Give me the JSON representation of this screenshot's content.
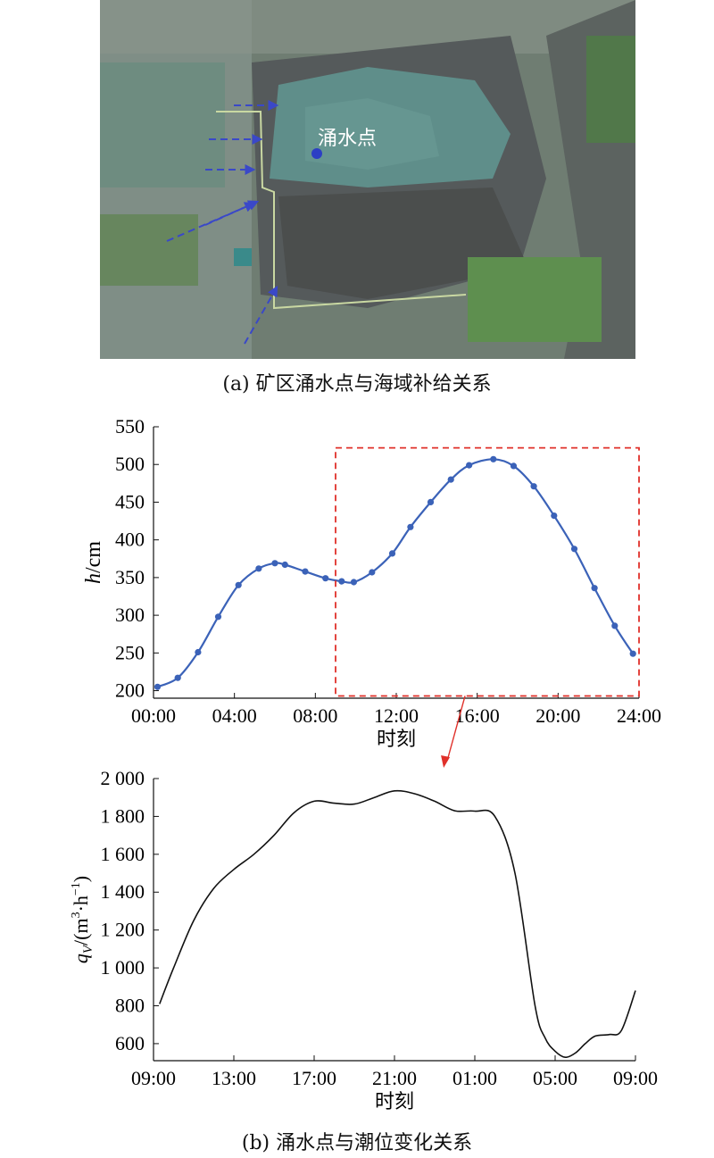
{
  "photo": {
    "label": "涌水点",
    "colors": {
      "arrow": "#3a48c8",
      "point": "#2c3fc4"
    }
  },
  "caption_a": "(a) 矿区涌水点与海域补给关系",
  "caption_b": "(b) 涌水点与潮位变化关系",
  "chart_data": [
    {
      "type": "line",
      "xlabel": "时刻",
      "ylabel_italic": "h",
      "ylabel_rest": "/cm",
      "xticks": [
        "00:00",
        "04:00",
        "08:00",
        "12:00",
        "16:00",
        "20:00",
        "24:00"
      ],
      "xlim": [
        0,
        24
      ],
      "ylim": [
        190,
        550
      ],
      "yticks": [
        200,
        250,
        300,
        350,
        400,
        450,
        500,
        550
      ],
      "color": "#3b62b8",
      "points": [
        [
          0.2,
          205
        ],
        [
          1.2,
          217
        ],
        [
          2.2,
          251
        ],
        [
          3.2,
          298
        ],
        [
          4.2,
          340
        ],
        [
          5.2,
          362
        ],
        [
          6.0,
          369
        ],
        [
          6.5,
          367
        ],
        [
          7.5,
          358
        ],
        [
          8.5,
          349
        ],
        [
          9.3,
          345
        ],
        [
          9.9,
          344
        ],
        [
          10.8,
          357
        ],
        [
          11.8,
          382
        ],
        [
          12.7,
          417
        ],
        [
          13.7,
          450
        ],
        [
          14.7,
          480
        ],
        [
          15.6,
          499
        ],
        [
          16.8,
          507
        ],
        [
          17.8,
          498
        ],
        [
          18.8,
          471
        ],
        [
          19.8,
          432
        ],
        [
          20.8,
          388
        ],
        [
          21.8,
          336
        ],
        [
          22.8,
          286
        ],
        [
          23.7,
          249
        ]
      ],
      "highlight": {
        "x": [
          9.0,
          24.0
        ],
        "y": [
          193,
          522
        ],
        "color": "#e0302a"
      }
    },
    {
      "type": "line",
      "xlabel": "时刻",
      "ylabel_q": "q",
      "ylabel_sub": "V",
      "ylabel_rest": "/(m",
      "ylabel_sup1": "3",
      "ylabel_mid": "·h",
      "ylabel_sup2": "−1",
      "ylabel_end": ")",
      "xticks": [
        "09:00",
        "13:00",
        "17:00",
        "21:00",
        "01:00",
        "05:00",
        "09:00"
      ],
      "xlim": [
        0,
        24
      ],
      "ylim": [
        510,
        2000
      ],
      "yticks": [
        600,
        800,
        1000,
        1200,
        1400,
        1600,
        1800,
        2000
      ],
      "ytick_labels": [
        "600",
        "800",
        "1 000",
        "1 200",
        "1 400",
        "1 600",
        "1 800",
        "2 000"
      ],
      "color": "#111111",
      "points": [
        [
          0.3,
          810
        ],
        [
          1.0,
          1000
        ],
        [
          2.0,
          1250
        ],
        [
          3.0,
          1420
        ],
        [
          4.0,
          1520
        ],
        [
          5.0,
          1600
        ],
        [
          6.0,
          1700
        ],
        [
          7.0,
          1820
        ],
        [
          8.0,
          1880
        ],
        [
          9.0,
          1870
        ],
        [
          10.0,
          1865
        ],
        [
          11.0,
          1900
        ],
        [
          12.0,
          1935
        ],
        [
          13.0,
          1920
        ],
        [
          14.0,
          1880
        ],
        [
          15.0,
          1830
        ],
        [
          16.0,
          1828
        ],
        [
          17.0,
          1800
        ],
        [
          18.0,
          1500
        ],
        [
          19.0,
          800
        ],
        [
          19.5,
          630
        ],
        [
          20.0,
          560
        ],
        [
          20.5,
          528
        ],
        [
          21.0,
          550
        ],
        [
          21.5,
          600
        ],
        [
          22.0,
          640
        ],
        [
          22.7,
          648
        ],
        [
          23.3,
          670
        ],
        [
          24.0,
          880
        ]
      ]
    }
  ]
}
